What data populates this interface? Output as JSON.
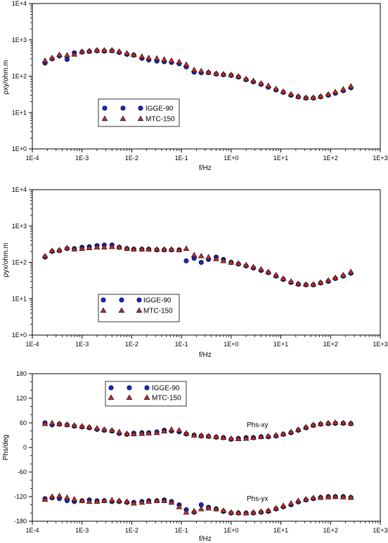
{
  "colors": {
    "igge": "#1428c8",
    "mtc": "#c82828",
    "marker_stroke": "#000000"
  },
  "chart_data": [
    {
      "type": "scatter",
      "xscale": "log",
      "yscale": "log",
      "xlim": [
        0.0001,
        1000
      ],
      "ylim": [
        1,
        10000
      ],
      "x_ticks": [
        "1E-4",
        "1E-3",
        "1E-2",
        "1E-1",
        "1E+0",
        "1E+1",
        "1E+2",
        "1E+3"
      ],
      "y_ticks": [
        "1E+0",
        "1E+1",
        "1E+2",
        "1E+3",
        "1E+4"
      ],
      "xlabel": "f/Hz",
      "ylabel": "ρxy/ohm.m",
      "legend": "center-left",
      "series": [
        {
          "name": "IGGE-90",
          "marker": "circle",
          "x": [
            0.00018,
            0.00025,
            0.00035,
            0.0005,
            0.0007,
            0.001,
            0.0014,
            0.002,
            0.0028,
            0.004,
            0.0056,
            0.008,
            0.011,
            0.016,
            0.022,
            0.032,
            0.045,
            0.063,
            0.09,
            0.125,
            0.18,
            0.25,
            0.35,
            0.5,
            0.7,
            1.0,
            1.4,
            2.0,
            2.8,
            4.0,
            5.6,
            8.0,
            11.2,
            16,
            22.4,
            32,
            45,
            63,
            90,
            125,
            180,
            256
          ],
          "values": [
            230,
            300,
            360,
            290,
            440,
            460,
            480,
            500,
            490,
            500,
            450,
            400,
            380,
            310,
            280,
            260,
            250,
            240,
            220,
            180,
            130,
            125,
            125,
            115,
            110,
            105,
            95,
            80,
            70,
            60,
            50,
            42,
            36,
            30,
            27,
            25,
            25,
            27,
            30,
            34,
            40,
            48
          ]
        },
        {
          "name": "MTC-150",
          "marker": "triangle",
          "x": [
            0.00018,
            0.00025,
            0.00035,
            0.0005,
            0.0007,
            0.001,
            0.0014,
            0.002,
            0.0028,
            0.004,
            0.0056,
            0.008,
            0.011,
            0.016,
            0.022,
            0.032,
            0.045,
            0.063,
            0.09,
            0.125,
            0.18,
            0.25,
            0.35,
            0.5,
            0.7,
            1.0,
            1.4,
            2.0,
            2.8,
            4.0,
            5.6,
            8.0,
            11.2,
            16,
            22.4,
            32,
            45,
            63,
            90,
            125,
            180,
            256
          ],
          "values": [
            270,
            320,
            390,
            380,
            400,
            480,
            500,
            520,
            520,
            520,
            480,
            430,
            390,
            350,
            320,
            310,
            290,
            270,
            250,
            210,
            150,
            140,
            130,
            120,
            115,
            110,
            100,
            85,
            75,
            64,
            55,
            45,
            38,
            32,
            28,
            26,
            26,
            28,
            32,
            37,
            44,
            53
          ]
        }
      ]
    },
    {
      "type": "scatter",
      "xscale": "log",
      "yscale": "log",
      "xlim": [
        0.0001,
        1000
      ],
      "ylim": [
        1,
        10000
      ],
      "x_ticks": [
        "1E-4",
        "1E-3",
        "1E-2",
        "1E-1",
        "1E+0",
        "1E+1",
        "1E+2",
        "1E+3"
      ],
      "y_ticks": [
        "1E+0",
        "1E+1",
        "1E+2",
        "1E+3",
        "1E+4"
      ],
      "xlabel": "f/Hz",
      "ylabel": "ρyx/ohm.m",
      "legend": "bottom-left",
      "series": [
        {
          "name": "IGGE-90",
          "marker": "circle",
          "x": [
            0.00018,
            0.00025,
            0.00035,
            0.0005,
            0.0007,
            0.001,
            0.0014,
            0.002,
            0.0028,
            0.004,
            0.0056,
            0.008,
            0.011,
            0.016,
            0.022,
            0.032,
            0.045,
            0.063,
            0.09,
            0.125,
            0.18,
            0.25,
            0.35,
            0.5,
            0.7,
            1.0,
            1.4,
            2.0,
            2.8,
            4.0,
            5.6,
            8.0,
            11.2,
            16,
            22.4,
            32,
            45,
            63,
            90,
            125,
            180,
            256
          ],
          "values": [
            140,
            200,
            210,
            240,
            240,
            260,
            270,
            290,
            300,
            300,
            260,
            240,
            230,
            230,
            230,
            220,
            220,
            220,
            220,
            110,
            130,
            100,
            120,
            140,
            120,
            100,
            90,
            80,
            70,
            60,
            52,
            42,
            34,
            28,
            25,
            24,
            24,
            27,
            30,
            36,
            42,
            50
          ]
        },
        {
          "name": "MTC-150",
          "marker": "triangle",
          "x": [
            0.00018,
            0.00025,
            0.00035,
            0.0005,
            0.0007,
            0.001,
            0.0014,
            0.002,
            0.0028,
            0.004,
            0.0056,
            0.008,
            0.011,
            0.016,
            0.022,
            0.032,
            0.045,
            0.063,
            0.09,
            0.125,
            0.18,
            0.25,
            0.35,
            0.5,
            0.7,
            1.0,
            1.4,
            2.0,
            2.8,
            4.0,
            5.6,
            8.0,
            11.2,
            16,
            22.4,
            32,
            45,
            63,
            90,
            125,
            180,
            256
          ],
          "values": [
            150,
            210,
            220,
            250,
            230,
            240,
            250,
            260,
            260,
            270,
            260,
            240,
            230,
            230,
            230,
            230,
            230,
            230,
            220,
            240,
            160,
            150,
            140,
            125,
            110,
            100,
            95,
            85,
            75,
            65,
            55,
            45,
            36,
            30,
            26,
            25,
            25,
            28,
            32,
            38,
            45,
            55
          ]
        }
      ]
    },
    {
      "type": "scatter",
      "xscale": "log",
      "yscale": "linear",
      "xlim": [
        0.0001,
        1000
      ],
      "ylim": [
        -180,
        180
      ],
      "x_ticks": [
        "1E-4",
        "1E-3",
        "1E-2",
        "1E-1",
        "1E+0",
        "1E+1",
        "1E+2",
        "1E+3"
      ],
      "y_ticks": [
        "-180",
        "-120",
        "-60",
        "0",
        "60",
        "120",
        "180"
      ],
      "xlabel": "f/Hz",
      "ylabel": "Phs/deg",
      "legend": "top-left",
      "annotations": [
        "Phs-xy",
        "Phs-yx"
      ],
      "series": [
        {
          "name": "IGGE-90",
          "marker": "circle",
          "x": [
            0.00018,
            0.00025,
            0.00035,
            0.0005,
            0.0007,
            0.001,
            0.0014,
            0.002,
            0.0028,
            0.004,
            0.0056,
            0.008,
            0.011,
            0.016,
            0.022,
            0.032,
            0.045,
            0.063,
            0.09,
            0.125,
            0.18,
            0.25,
            0.35,
            0.5,
            0.7,
            1.0,
            1.4,
            2.0,
            2.8,
            4.0,
            5.6,
            8.0,
            11.2,
            16,
            22.4,
            32,
            45,
            63,
            90,
            125,
            180,
            256,
            0.00018,
            0.00025,
            0.00035,
            0.0005,
            0.0007,
            0.001,
            0.0014,
            0.002,
            0.0028,
            0.004,
            0.0056,
            0.008,
            0.011,
            0.016,
            0.022,
            0.032,
            0.045,
            0.063,
            0.09,
            0.125,
            0.18,
            0.25,
            0.35,
            0.5,
            0.7,
            1.0,
            1.4,
            2.0,
            2.8,
            4.0,
            5.6,
            8.0,
            11.2,
            16,
            22.4,
            32,
            45,
            63,
            90,
            125,
            180,
            256
          ],
          "values": [
            60,
            55,
            57,
            55,
            52,
            50,
            48,
            44,
            42,
            40,
            34,
            32,
            35,
            36,
            36,
            38,
            42,
            40,
            38,
            33,
            30,
            28,
            27,
            25,
            24,
            20,
            22,
            24,
            24,
            26,
            26,
            28,
            32,
            36,
            42,
            48,
            54,
            57,
            58,
            59,
            59,
            58,
            -125,
            -123,
            -125,
            -130,
            -132,
            -130,
            -128,
            -130,
            -130,
            -132,
            -132,
            -134,
            -134,
            -132,
            -130,
            -130,
            -128,
            -132,
            -140,
            -152,
            -158,
            -140,
            -146,
            -150,
            -156,
            -160,
            -160,
            -160,
            -160,
            -158,
            -156,
            -150,
            -145,
            -140,
            -133,
            -128,
            -125,
            -122,
            -120,
            -120,
            -120,
            -122
          ]
        },
        {
          "name": "MTC-150",
          "marker": "triangle",
          "x": [
            0.00018,
            0.00025,
            0.00035,
            0.0005,
            0.0007,
            0.001,
            0.0014,
            0.002,
            0.0028,
            0.004,
            0.0056,
            0.008,
            0.011,
            0.016,
            0.022,
            0.032,
            0.045,
            0.063,
            0.09,
            0.125,
            0.18,
            0.25,
            0.35,
            0.5,
            0.7,
            1.0,
            1.4,
            2.0,
            2.8,
            4.0,
            5.6,
            8.0,
            11.2,
            16,
            22.4,
            32,
            45,
            63,
            90,
            125,
            180,
            256,
            0.00018,
            0.00025,
            0.00035,
            0.0005,
            0.0007,
            0.001,
            0.0014,
            0.002,
            0.0028,
            0.004,
            0.0056,
            0.008,
            0.011,
            0.016,
            0.022,
            0.032,
            0.045,
            0.063,
            0.09,
            0.125,
            0.18,
            0.25,
            0.35,
            0.5,
            0.7,
            1.0,
            1.4,
            2.0,
            2.8,
            4.0,
            5.6,
            8.0,
            11.2,
            16,
            22.4,
            32,
            45,
            63,
            90,
            125,
            180,
            256
          ],
          "values": [
            58,
            60,
            58,
            56,
            54,
            52,
            50,
            47,
            44,
            42,
            38,
            34,
            33,
            34,
            35,
            36,
            40,
            44,
            42,
            35,
            30,
            29,
            28,
            26,
            24,
            22,
            21,
            22,
            24,
            26,
            28,
            30,
            33,
            38,
            44,
            50,
            55,
            58,
            60,
            61,
            60,
            59,
            -127,
            -120,
            -118,
            -122,
            -126,
            -130,
            -132,
            -132,
            -130,
            -128,
            -130,
            -132,
            -136,
            -134,
            -132,
            -130,
            -130,
            -134,
            -145,
            -158,
            -155,
            -150,
            -148,
            -150,
            -154,
            -158,
            -159,
            -160,
            -158,
            -156,
            -154,
            -148,
            -142,
            -136,
            -130,
            -126,
            -123,
            -122,
            -121,
            -120,
            -121,
            -122
          ]
        }
      ]
    }
  ]
}
